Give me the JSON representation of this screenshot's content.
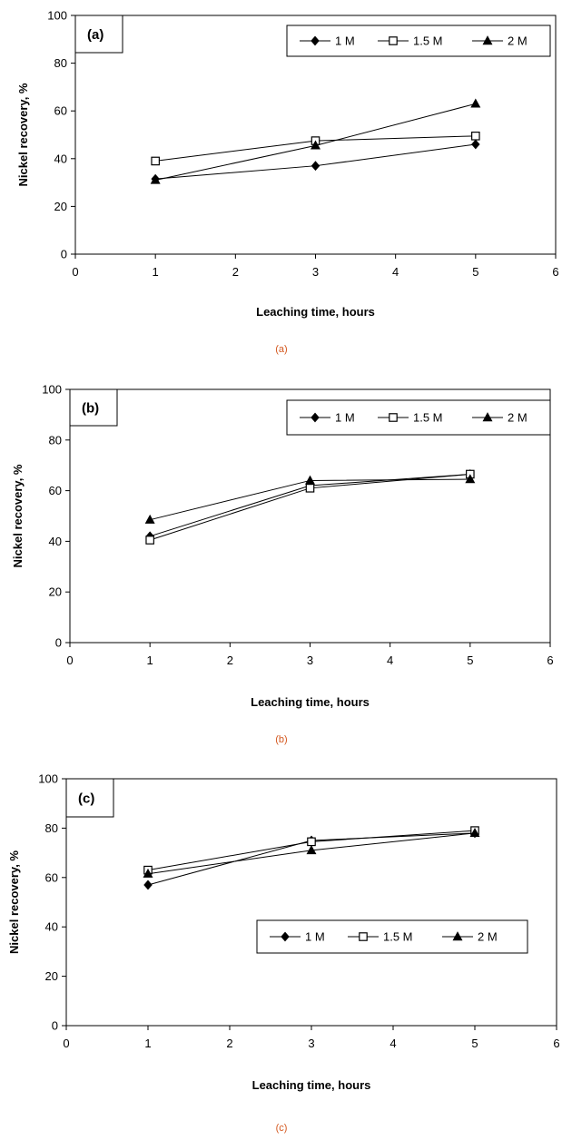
{
  "accent_caption_color": "#d4581f",
  "chart_data": [
    {
      "type": "line",
      "panel_label": "(a)",
      "caption": "(a)",
      "xlabel": "Leaching time, hours",
      "ylabel": "Nickel recovery, %",
      "xlim": [
        0,
        6
      ],
      "ylim": [
        0,
        100
      ],
      "xticks": [
        0,
        1,
        2,
        3,
        4,
        5,
        6
      ],
      "yticks": [
        0,
        20,
        40,
        60,
        80,
        100
      ],
      "grid": false,
      "legend_position": "top-right",
      "x": [
        1,
        3,
        5
      ],
      "series": [
        {
          "name": "1 M",
          "marker": "diamond",
          "values": [
            31.5,
            37,
            46
          ]
        },
        {
          "name": "1.5 M",
          "marker": "square-open",
          "values": [
            39,
            47.5,
            49.5
          ]
        },
        {
          "name": "2 M",
          "marker": "triangle",
          "values": [
            31,
            45.5,
            63
          ]
        }
      ]
    },
    {
      "type": "line",
      "panel_label": "(b)",
      "caption": "(b)",
      "xlabel": "Leaching time, hours",
      "ylabel": "Nickel recovery, %",
      "xlim": [
        0,
        6
      ],
      "ylim": [
        0,
        100
      ],
      "xticks": [
        0,
        1,
        2,
        3,
        4,
        5,
        6
      ],
      "yticks": [
        0,
        20,
        40,
        60,
        80,
        100
      ],
      "grid": false,
      "legend_position": "top-right",
      "x": [
        1,
        3,
        5
      ],
      "series": [
        {
          "name": "1 M",
          "marker": "diamond",
          "values": [
            42,
            62,
            66.5
          ]
        },
        {
          "name": "1.5 M",
          "marker": "square-open",
          "values": [
            40.5,
            61,
            66.5
          ]
        },
        {
          "name": "2 M",
          "marker": "triangle",
          "values": [
            48.5,
            64,
            64.5
          ]
        }
      ]
    },
    {
      "type": "line",
      "panel_label": "(c)",
      "caption": "(c)",
      "xlabel": "Leaching time, hours",
      "ylabel": "Nickel recovery, %",
      "xlim": [
        0,
        6
      ],
      "ylim": [
        0,
        100
      ],
      "xticks": [
        0,
        1,
        2,
        3,
        4,
        5,
        6
      ],
      "yticks": [
        0,
        20,
        40,
        60,
        80,
        100
      ],
      "grid": false,
      "legend_position": "bottom-right",
      "x": [
        1,
        3,
        5
      ],
      "series": [
        {
          "name": "1 M",
          "marker": "diamond",
          "values": [
            57,
            75,
            78
          ]
        },
        {
          "name": "1.5 M",
          "marker": "square-open",
          "values": [
            63,
            74.5,
            79
          ]
        },
        {
          "name": "2 M",
          "marker": "triangle",
          "values": [
            61.5,
            71,
            78
          ]
        }
      ]
    }
  ]
}
